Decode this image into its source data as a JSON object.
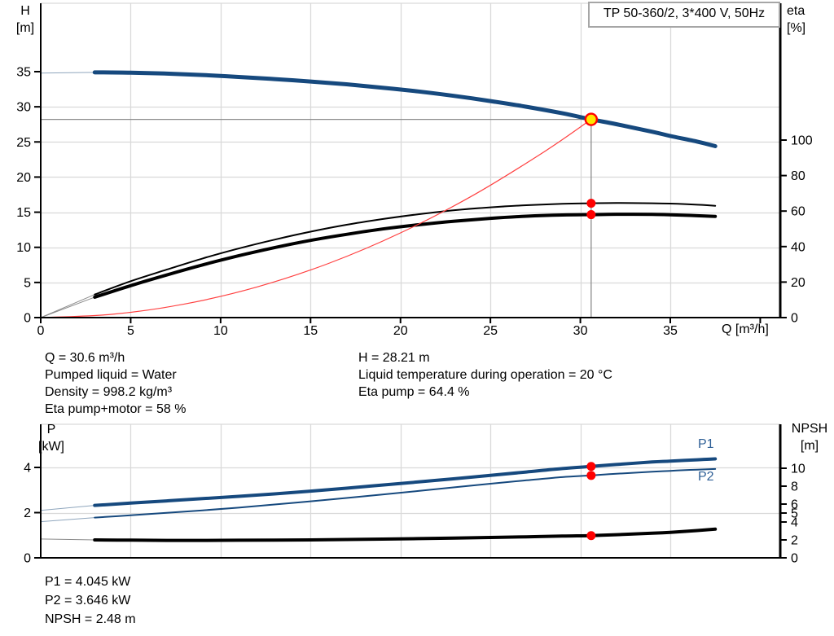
{
  "panel": {
    "title": "TP 50-360/2, 3*400 V, 50Hz"
  },
  "axis_labels": {
    "h": {
      "line1": "H",
      "line2": "[m]"
    },
    "eta": {
      "line1": "eta",
      "line2": "[%]"
    },
    "q": "Q [m³/h]",
    "p": {
      "line1": "P",
      "line2": "[kW]"
    },
    "npsh": {
      "line1": "NPSH",
      "line2": "[m]"
    }
  },
  "series_labels": {
    "p1": "P1",
    "p2": "P2"
  },
  "info_top": {
    "left": [
      "Q = 30.6 m³/h",
      "Pumped liquid = Water",
      "Density = 998.2 kg/m³",
      "Eta pump+motor = 58 %"
    ],
    "right": [
      "H = 28.21 m",
      "Liquid temperature during operation = 20 °C",
      "Eta pump = 64.4 %"
    ]
  },
  "info_bottom": [
    "P1 = 4.045 kW",
    "P2 = 3.646 kW",
    "NPSH = 2.48 m"
  ],
  "colors": {
    "curve_blue": "#16497e",
    "curve_black": "#000000",
    "system_red": "#ff4040",
    "marker_red": "#ff0000",
    "duty_fill": "#ffe600",
    "grid": "#d9d9d9",
    "axis": "#000000",
    "crosshair": "#8c8c8c",
    "label_blue": "#2e5f96",
    "box_border": "#a6a6a6"
  },
  "chart_data": [
    {
      "type": "line",
      "title": "TP 50-360/2, 3*400 V, 50Hz",
      "xlabel": "Q [m³/h]",
      "ylabel_left": "H [m]",
      "ylabel_right": "eta [%]",
      "xlim": [
        0,
        41.1
      ],
      "ylim_left": [
        0,
        35
      ],
      "ylim_right": [
        0,
        100
      ],
      "x_axis": {
        "ticks": [
          {
            "v": 0,
            "label": "0"
          },
          {
            "v": 5,
            "label": "5"
          },
          {
            "v": 10,
            "label": "10"
          },
          {
            "v": 15,
            "label": "15"
          },
          {
            "v": 20,
            "label": "20"
          },
          {
            "v": 25,
            "label": "25"
          },
          {
            "v": 30,
            "label": "30"
          },
          {
            "v": 35,
            "label": "35"
          },
          {
            "v": 40,
            "label": ""
          }
        ],
        "grid": [
          5,
          10,
          15,
          20,
          25,
          30,
          35
        ]
      },
      "y_left": {
        "ticks": [
          {
            "v": 0,
            "label": "0"
          },
          {
            "v": 5,
            "label": "5"
          },
          {
            "v": 10,
            "label": "10"
          },
          {
            "v": 15,
            "label": "15"
          },
          {
            "v": 20,
            "label": "20"
          },
          {
            "v": 25,
            "label": "25"
          },
          {
            "v": 30,
            "label": "30"
          },
          {
            "v": 35,
            "label": "35"
          }
        ],
        "grid": [
          5,
          10,
          15,
          20,
          25,
          30
        ]
      },
      "y_right": {
        "ticks": [
          {
            "v": 0,
            "label": "0"
          },
          {
            "v": 20,
            "label": "20"
          },
          {
            "v": 40,
            "label": "40"
          },
          {
            "v": 60,
            "label": "60"
          },
          {
            "v": 80,
            "label": "80"
          },
          {
            "v": 100,
            "label": "100"
          }
        ]
      },
      "series": [
        {
          "id": "h-curve",
          "name": "H",
          "axis": "left",
          "color": "#16497e",
          "width": 5,
          "lead_until": 3,
          "lead_color": "#8fa6bd",
          "points": [
            [
              0,
              34.8
            ],
            [
              3,
              34.9
            ],
            [
              5,
              34.85
            ],
            [
              7,
              34.72
            ],
            [
              9,
              34.52
            ],
            [
              11,
              34.25
            ],
            [
              13,
              33.95
            ],
            [
              15,
              33.6
            ],
            [
              17,
              33.2
            ],
            [
              19,
              32.72
            ],
            [
              21,
              32.18
            ],
            [
              23,
              31.55
            ],
            [
              25,
              30.82
            ],
            [
              27,
              30.0
            ],
            [
              29,
              29.08
            ],
            [
              30.6,
              28.21
            ],
            [
              32,
              27.52
            ],
            [
              34,
              26.45
            ],
            [
              35,
              25.85
            ],
            [
              36.5,
              25.05
            ],
            [
              37.5,
              24.4
            ]
          ]
        },
        {
          "id": "eta-pump-curve",
          "name": "Eta pump",
          "axis": "right",
          "color": "#000000",
          "width": 2,
          "lead_until": 3,
          "lead_color": "#8c8c8c",
          "points": [
            [
              0,
              0
            ],
            [
              3,
              13
            ],
            [
              5,
              20.5
            ],
            [
              7,
              27
            ],
            [
              9,
              33.3
            ],
            [
              11,
              38.9
            ],
            [
              13,
              43.9
            ],
            [
              15,
              48.4
            ],
            [
              17,
              52.3
            ],
            [
              19,
              55.5
            ],
            [
              21,
              58.2
            ],
            [
              23,
              60.5
            ],
            [
              25,
              62.1
            ],
            [
              27,
              63.3
            ],
            [
              29,
              64.1
            ],
            [
              30.6,
              64.4
            ],
            [
              32,
              64.6
            ],
            [
              34,
              64.4
            ],
            [
              35,
              64.2
            ],
            [
              36.5,
              63.6
            ],
            [
              37.5,
              63.0
            ]
          ]
        },
        {
          "id": "eta-pump-motor-curve",
          "name": "Eta pump+motor",
          "axis": "right",
          "color": "#000000",
          "width": 4,
          "lead_until": 3,
          "lead_color": "#8c8c8c",
          "points": [
            [
              0,
              0
            ],
            [
              3,
              11.5
            ],
            [
              5,
              18
            ],
            [
              7,
              24
            ],
            [
              9,
              29.7
            ],
            [
              11,
              34.8
            ],
            [
              13,
              39.4
            ],
            [
              15,
              43.5
            ],
            [
              17,
              46.9
            ],
            [
              19,
              49.9
            ],
            [
              21,
              52.3
            ],
            [
              23,
              54.3
            ],
            [
              25,
              55.9
            ],
            [
              27,
              57.1
            ],
            [
              29,
              57.8
            ],
            [
              30.6,
              58.0
            ],
            [
              32,
              58.2
            ],
            [
              34,
              58.1
            ],
            [
              35,
              57.9
            ],
            [
              36.5,
              57.4
            ],
            [
              37.5,
              57.0
            ]
          ]
        },
        {
          "id": "system-curve",
          "name": "System curve",
          "axis": "left",
          "color": "#ff4040",
          "width": 1.2,
          "points": [
            [
              0,
              0
            ],
            [
              4,
              0.48
            ],
            [
              8,
              1.93
            ],
            [
              12,
              4.34
            ],
            [
              16,
              7.71
            ],
            [
              20,
              12.05
            ],
            [
              24,
              17.35
            ],
            [
              28,
              23.62
            ],
            [
              30.6,
              28.21
            ]
          ]
        }
      ],
      "crosshair": {
        "x": 30.6,
        "v": 28.21,
        "axis": "left"
      },
      "markers": [
        {
          "x": 30.6,
          "v": 28.21,
          "axis": "left",
          "style": "duty",
          "name": "duty-point"
        },
        {
          "x": 30.6,
          "v": 64.4,
          "axis": "right",
          "style": "dot",
          "name": "eta-pump-dot"
        },
        {
          "x": 30.6,
          "v": 58.0,
          "axis": "right",
          "style": "dot",
          "name": "eta-pump-motor-dot"
        }
      ]
    },
    {
      "type": "line",
      "xlabel": "",
      "ylabel_left": "P [kW]",
      "ylabel_right": "NPSH [m]",
      "xlim": [
        0,
        41.1
      ],
      "ylim_left": [
        0,
        5.9
      ],
      "ylim_right": [
        0,
        14.9
      ],
      "x_axis": {
        "ticks": [],
        "grid": [
          5,
          10,
          15,
          20,
          25,
          30,
          35
        ]
      },
      "y_left": {
        "ticks": [
          {
            "v": 0,
            "label": "0"
          },
          {
            "v": 2,
            "label": "2"
          },
          {
            "v": 4,
            "label": "4"
          }
        ],
        "grid": [
          2,
          4
        ]
      },
      "y_right": {
        "ticks": [
          {
            "v": 0,
            "label": "0"
          },
          {
            "v": 2,
            "label": "2"
          },
          {
            "v": 4,
            "label": "4"
          },
          {
            "v": 5,
            "label": "5"
          },
          {
            "v": 6,
            "label": "6"
          },
          {
            "v": 8,
            "label": "8"
          },
          {
            "v": 10,
            "label": "10"
          }
        ]
      },
      "series": [
        {
          "id": "p1-curve",
          "name": "P1",
          "axis": "left",
          "color": "#16497e",
          "width": 4,
          "lead_until": 3,
          "lead_color": "#8fa6bd",
          "points": [
            [
              0,
              2.1
            ],
            [
              3,
              2.32
            ],
            [
              5,
              2.42
            ],
            [
              7,
              2.52
            ],
            [
              9,
              2.62
            ],
            [
              11,
              2.72
            ],
            [
              13,
              2.83
            ],
            [
              15,
              2.95
            ],
            [
              17,
              3.08
            ],
            [
              19,
              3.22
            ],
            [
              21,
              3.36
            ],
            [
              23,
              3.5
            ],
            [
              25,
              3.65
            ],
            [
              27,
              3.8
            ],
            [
              29,
              3.95
            ],
            [
              30.6,
              4.045
            ],
            [
              32,
              4.13
            ],
            [
              34,
              4.24
            ],
            [
              35,
              4.28
            ],
            [
              36.5,
              4.34
            ],
            [
              37.5,
              4.38
            ]
          ]
        },
        {
          "id": "p2-curve",
          "name": "P2",
          "axis": "left",
          "color": "#16497e",
          "width": 2,
          "lead_until": 3,
          "lead_color": "#8fa6bd",
          "points": [
            [
              0,
              1.6
            ],
            [
              3,
              1.78
            ],
            [
              5,
              1.88
            ],
            [
              7,
              1.99
            ],
            [
              9,
              2.1
            ],
            [
              11,
              2.22
            ],
            [
              13,
              2.36
            ],
            [
              15,
              2.5
            ],
            [
              17,
              2.65
            ],
            [
              19,
              2.8
            ],
            [
              21,
              2.96
            ],
            [
              23,
              3.12
            ],
            [
              25,
              3.28
            ],
            [
              27,
              3.43
            ],
            [
              29,
              3.57
            ],
            [
              30.6,
              3.646
            ],
            [
              32,
              3.72
            ],
            [
              34,
              3.81
            ],
            [
              35,
              3.85
            ],
            [
              36.5,
              3.9
            ],
            [
              37.5,
              3.93
            ]
          ]
        },
        {
          "id": "npsh-curve",
          "name": "NPSH",
          "axis": "right",
          "color": "#000000",
          "width": 4,
          "lead_until": 3,
          "lead_color": "#8c8c8c",
          "points": [
            [
              0,
              2.1
            ],
            [
              3,
              2.0
            ],
            [
              5,
              1.97
            ],
            [
              7,
              1.95
            ],
            [
              9,
              1.95
            ],
            [
              11,
              1.96
            ],
            [
              13,
              1.98
            ],
            [
              15,
              2.0
            ],
            [
              17,
              2.05
            ],
            [
              19,
              2.09
            ],
            [
              21,
              2.15
            ],
            [
              23,
              2.21
            ],
            [
              25,
              2.27
            ],
            [
              27,
              2.35
            ],
            [
              29,
              2.43
            ],
            [
              30.6,
              2.48
            ],
            [
              32,
              2.58
            ],
            [
              34,
              2.75
            ],
            [
              35,
              2.85
            ],
            [
              36.5,
              3.05
            ],
            [
              37.5,
              3.2
            ]
          ]
        }
      ],
      "markers": [
        {
          "x": 30.6,
          "v": 4.045,
          "axis": "left",
          "style": "dot",
          "name": "p1-dot"
        },
        {
          "x": 30.6,
          "v": 3.646,
          "axis": "left",
          "style": "dot",
          "name": "p2-dot"
        },
        {
          "x": 30.6,
          "v": 2.48,
          "axis": "right",
          "style": "dot",
          "name": "npsh-dot"
        }
      ]
    }
  ]
}
